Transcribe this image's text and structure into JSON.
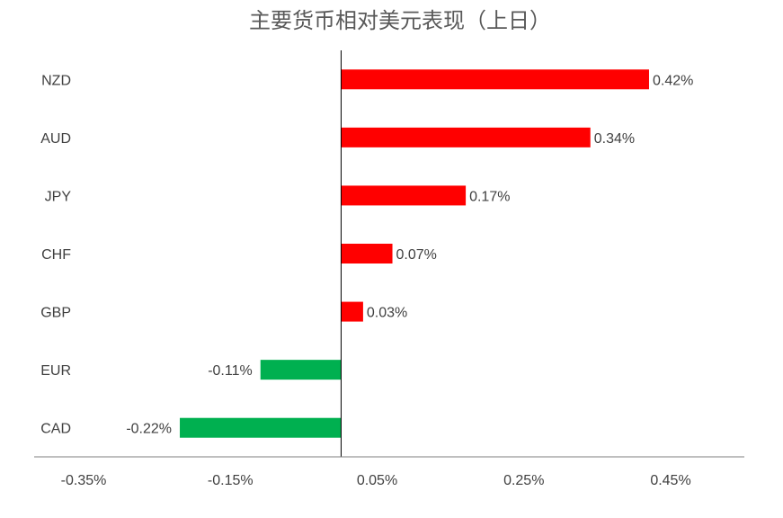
{
  "chart_data": {
    "type": "bar",
    "orientation": "horizontal",
    "title": "主要货币相对美元表现（上日）",
    "categories": [
      "NZD",
      "AUD",
      "JPY",
      "CHF",
      "GBP",
      "EUR",
      "CAD"
    ],
    "values": [
      0.42,
      0.34,
      0.17,
      0.07,
      0.03,
      -0.11,
      -0.22
    ],
    "data_labels": [
      "0.42%",
      "0.34%",
      "0.17%",
      "0.07%",
      "0.03%",
      "-0.11%",
      "-0.22%"
    ],
    "x_ticks": [
      "-0.35%",
      "-0.15%",
      "0.05%",
      "0.25%",
      "0.45%"
    ],
    "xlim": [
      -0.35,
      0.55
    ],
    "colors": {
      "positive": "#ff0000",
      "negative": "#00b050",
      "axis": "#000000"
    },
    "grid": false,
    "legend": "none"
  }
}
